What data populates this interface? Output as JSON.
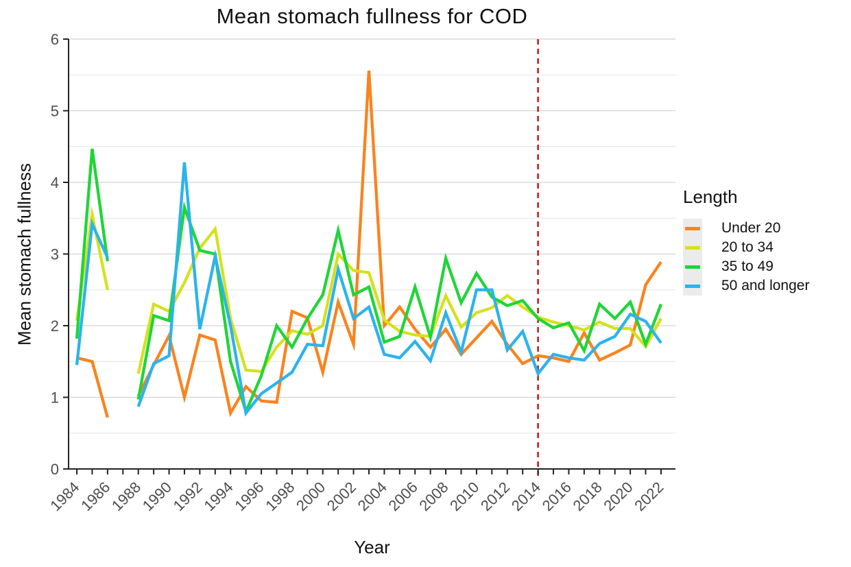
{
  "title": "Mean stomach fullness for COD",
  "x_axis": {
    "label": "Year",
    "tick_labels": [
      "1984",
      "1986",
      "1988",
      "1990",
      "1992",
      "1994",
      "1996",
      "1998",
      "2000",
      "2002",
      "2004",
      "2006",
      "2008",
      "2010",
      "2012",
      "2014",
      "2016",
      "2018",
      "2020",
      "2022"
    ]
  },
  "y_axis": {
    "label": "Mean stomach fullness",
    "tick_labels": [
      "0",
      "1",
      "2",
      "3",
      "4",
      "5",
      "6"
    ]
  },
  "legend": {
    "title": "Length",
    "items": [
      {
        "label": "Under 20",
        "color": "#fa831d"
      },
      {
        "label": "20 to 34",
        "color": "#d5e11e"
      },
      {
        "label": "35 to 49",
        "color": "#1fd537"
      },
      {
        "label": "50 and longer",
        "color": "#2bb3ee"
      }
    ]
  },
  "annotations": {
    "reference_line": {
      "x": 2014,
      "color": "#bf2026",
      "style": "dashed",
      "orientation": "vertical"
    }
  },
  "chart_data": {
    "type": "line",
    "title": "Mean stomach fullness for COD",
    "xlabel": "Year",
    "ylabel": "Mean stomach fullness",
    "xlim": [
      1984,
      2022
    ],
    "ylim": [
      0,
      6
    ],
    "grid": "on",
    "legend_position": "right",
    "vline_x": 2014,
    "x": [
      1984,
      1985,
      1986,
      1987,
      1988,
      1989,
      1990,
      1991,
      1992,
      1993,
      1994,
      1995,
      1996,
      1997,
      1998,
      1999,
      2000,
      2001,
      2002,
      2003,
      2004,
      2005,
      2006,
      2007,
      2008,
      2009,
      2010,
      2011,
      2012,
      2013,
      2014,
      2015,
      2016,
      2017,
      2018,
      2019,
      2020,
      2021,
      2022
    ],
    "series": [
      {
        "name": "Under 20",
        "color": "#fa831d",
        "values": [
          1.55,
          1.5,
          0.72,
          null,
          1.02,
          1.45,
          1.86,
          1.0,
          1.87,
          1.8,
          0.78,
          1.15,
          0.95,
          0.93,
          2.2,
          2.11,
          1.35,
          2.33,
          1.74,
          5.56,
          2.0,
          2.26,
          1.95,
          1.7,
          1.95,
          1.6,
          1.83,
          2.06,
          1.74,
          1.47,
          1.58,
          1.55,
          1.5,
          1.9,
          1.52,
          1.62,
          1.73,
          2.57,
          2.89
        ]
      },
      {
        "name": "20 to 34",
        "color": "#d5e11e",
        "values": [
          2.07,
          3.55,
          2.5,
          null,
          1.33,
          2.3,
          2.2,
          2.6,
          3.08,
          3.35,
          2.1,
          1.38,
          1.36,
          1.7,
          1.93,
          1.88,
          2.0,
          3.0,
          2.77,
          2.74,
          2.08,
          1.92,
          1.87,
          1.85,
          2.42,
          1.98,
          2.18,
          2.25,
          2.42,
          2.26,
          2.12,
          2.05,
          2.0,
          1.94,
          2.05,
          1.96,
          1.96,
          1.71,
          2.1
        ]
      },
      {
        "name": "35 to 49",
        "color": "#1fd537",
        "values": [
          1.82,
          4.47,
          2.9,
          null,
          0.97,
          2.14,
          2.07,
          3.65,
          3.05,
          3.0,
          1.5,
          0.8,
          1.3,
          2.0,
          1.7,
          2.1,
          2.43,
          3.33,
          2.43,
          2.54,
          1.77,
          1.85,
          2.54,
          1.84,
          2.94,
          2.32,
          2.73,
          2.4,
          2.28,
          2.35,
          2.1,
          1.97,
          2.04,
          1.65,
          2.3,
          2.1,
          2.33,
          1.74,
          2.3
        ]
      },
      {
        "name": "50 and longer",
        "color": "#2bb3ee",
        "values": [
          1.45,
          3.42,
          2.95,
          null,
          0.87,
          1.47,
          1.58,
          4.28,
          1.95,
          2.97,
          2.0,
          0.78,
          1.05,
          1.2,
          1.35,
          1.74,
          1.72,
          2.79,
          2.1,
          2.26,
          1.6,
          1.55,
          1.78,
          1.51,
          2.18,
          1.63,
          2.5,
          2.5,
          1.66,
          1.92,
          1.33,
          1.6,
          1.55,
          1.52,
          1.75,
          1.85,
          2.16,
          2.06,
          1.76
        ]
      }
    ]
  }
}
